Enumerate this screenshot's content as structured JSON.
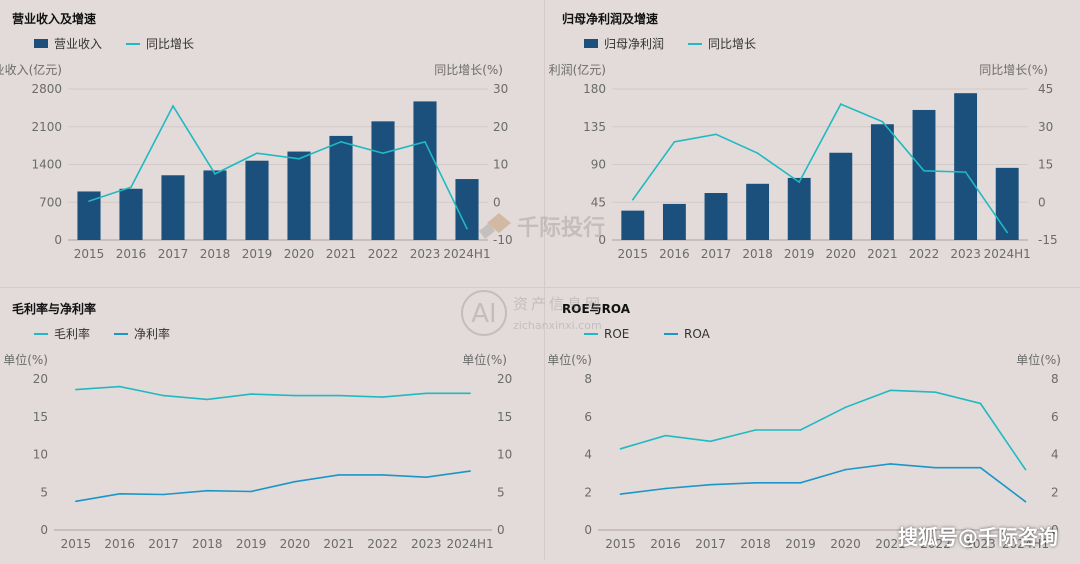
{
  "colors": {
    "bar": "#1b4f7c",
    "line_primary": "#21b9c1",
    "line_secondary": "#1a96c8",
    "axis_text": "#6b6b6b",
    "title_text": "#111111",
    "grid": "#d1cac8"
  },
  "footer": {
    "text": "搜狐号@千际咨询"
  },
  "watermark": {
    "brand_top": "千际投行",
    "brand_bottom": "资产信息网",
    "url": "zichanxinxi.com",
    "logo": "AI"
  },
  "chart_data": [
    {
      "type": "bar+line",
      "title": "营业收入及增速",
      "legend": [
        "营业收入",
        "同比增长"
      ],
      "legend_position": "top-left",
      "ylabel_left": "营业收入(亿元)",
      "ylabel_right": "同比增长(%)",
      "categories": [
        "2015",
        "2016",
        "2017",
        "2018",
        "2019",
        "2020",
        "2021",
        "2022",
        "2023",
        "2024H1"
      ],
      "ylim_left": [
        0,
        2800
      ],
      "yticks_left": [
        "0",
        "700",
        "1400",
        "2100",
        "2800"
      ],
      "ylim_right": [
        -10,
        30
      ],
      "yticks_right": [
        "-10",
        "0",
        "10",
        "20",
        "30"
      ],
      "series": [
        {
          "name": "营业收入",
          "type": "bar",
          "axis": "left",
          "values": [
            900,
            950,
            1200,
            1290,
            1470,
            1640,
            1930,
            2200,
            2570,
            1130
          ]
        },
        {
          "name": "同比增长",
          "type": "line",
          "axis": "right",
          "values": [
            0.3,
            4,
            25.5,
            7.5,
            13,
            11.5,
            16,
            13,
            16,
            -7
          ]
        }
      ],
      "grid": true
    },
    {
      "type": "bar+line",
      "title": "归母净利润及增速",
      "legend": [
        "归母净利润",
        "同比增长"
      ],
      "legend_position": "top-left",
      "ylabel_left": "归母净利润(亿元)",
      "ylabel_right": "同比增长(%)",
      "categories": [
        "2015",
        "2016",
        "2017",
        "2018",
        "2019",
        "2020",
        "2021",
        "2022",
        "2023",
        "2024H1"
      ],
      "ylim_left": [
        0,
        180
      ],
      "yticks_left": [
        "0",
        "45",
        "90",
        "135",
        "180"
      ],
      "ylim_right": [
        -15,
        45
      ],
      "yticks_right": [
        "-15",
        "0",
        "15",
        "30",
        "45"
      ],
      "series": [
        {
          "name": "归母净利润",
          "type": "bar",
          "axis": "left",
          "values": [
            35,
            43,
            56,
            67,
            74,
            104,
            138,
            155,
            175,
            86
          ]
        },
        {
          "name": "同比增长",
          "type": "line",
          "axis": "right",
          "values": [
            1,
            24,
            27,
            19.5,
            8,
            39,
            32,
            12.5,
            12,
            -12
          ]
        }
      ],
      "grid": true
    },
    {
      "type": "line",
      "title": "毛利率与净利率",
      "legend": [
        "毛利率",
        "净利率"
      ],
      "legend_position": "top-left",
      "ylabel_left": "单位(%)",
      "ylabel_right": "单位(%)",
      "categories": [
        "2015",
        "2016",
        "2017",
        "2018",
        "2019",
        "2020",
        "2021",
        "2022",
        "2023",
        "2024H1"
      ],
      "ylim_left": [
        0,
        20
      ],
      "yticks_left": [
        "0",
        "5",
        "10",
        "15",
        "20"
      ],
      "ylim_right": [
        0,
        20
      ],
      "yticks_right": [
        "0",
        "5",
        "10",
        "15",
        "20"
      ],
      "series": [
        {
          "name": "毛利率",
          "type": "line",
          "axis": "left",
          "values": [
            18.6,
            19,
            17.8,
            17.3,
            18,
            17.8,
            17.8,
            17.6,
            18.1,
            18.1
          ]
        },
        {
          "name": "净利率",
          "type": "line",
          "axis": "left",
          "values": [
            3.8,
            4.8,
            4.7,
            5.2,
            5.1,
            6.4,
            7.3,
            7.3,
            7,
            7.8
          ]
        }
      ],
      "grid": false
    },
    {
      "type": "line",
      "title": "ROE与ROA",
      "legend": [
        "ROE",
        "ROA"
      ],
      "legend_position": "top-left",
      "ylabel_left": "单位(%)",
      "ylabel_right": "单位(%)",
      "categories": [
        "2015",
        "2016",
        "2017",
        "2018",
        "2019",
        "2020",
        "2021",
        "2022",
        "2023",
        "2024H1"
      ],
      "ylim_left": [
        0,
        8
      ],
      "yticks_left": [
        "0",
        "2",
        "4",
        "6",
        "8"
      ],
      "ylim_right": [
        0,
        8
      ],
      "yticks_right": [
        "0",
        "2",
        "4",
        "6",
        "8"
      ],
      "series": [
        {
          "name": "ROE",
          "type": "line",
          "axis": "left",
          "values": [
            4.3,
            5,
            4.7,
            5.3,
            5.3,
            6.5,
            7.4,
            7.3,
            6.7,
            3.2
          ]
        },
        {
          "name": "ROA",
          "type": "line",
          "axis": "left",
          "values": [
            1.9,
            2.2,
            2.4,
            2.5,
            2.5,
            3.2,
            3.5,
            3.3,
            3.3,
            1.5
          ]
        }
      ],
      "grid": false
    }
  ]
}
